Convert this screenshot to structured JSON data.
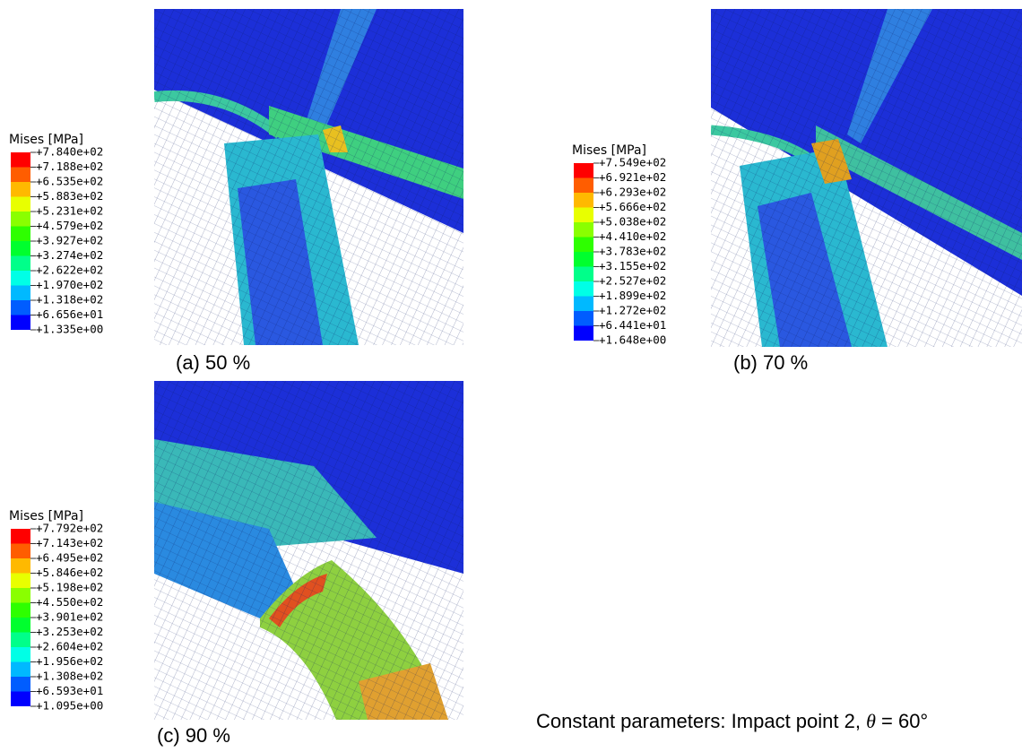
{
  "panels": [
    {
      "legend_title": "Mises [MPa]",
      "legend_values": [
        "+7.840e+02",
        "+7.188e+02",
        "+6.535e+02",
        "+5.883e+02",
        "+5.231e+02",
        "+4.579e+02",
        "+3.927e+02",
        "+3.274e+02",
        "+2.622e+02",
        "+1.970e+02",
        "+1.318e+02",
        "+6.656e+01",
        "+1.335e+00"
      ],
      "caption": "(a) 50 %"
    },
    {
      "legend_title": "Mises [MPa]",
      "legend_values": [
        "+7.549e+02",
        "+6.921e+02",
        "+6.293e+02",
        "+5.666e+02",
        "+5.038e+02",
        "+4.410e+02",
        "+3.783e+02",
        "+3.155e+02",
        "+2.527e+02",
        "+1.899e+02",
        "+1.272e+02",
        "+6.441e+01",
        "+1.648e+00"
      ],
      "caption": "(b) 70 %"
    },
    {
      "legend_title": "Mises [MPa]",
      "legend_values": [
        "+7.792e+02",
        "+7.143e+02",
        "+6.495e+02",
        "+5.846e+02",
        "+5.198e+02",
        "+4.550e+02",
        "+3.901e+02",
        "+3.253e+02",
        "+2.604e+02",
        "+1.956e+02",
        "+1.308e+02",
        "+6.593e+01",
        "+1.095e+00"
      ],
      "caption": "(c) 90 %"
    }
  ],
  "note": {
    "before": "Constant parameters: Impact point 2, ",
    "symbol": "θ",
    "after": " = 60°"
  }
}
